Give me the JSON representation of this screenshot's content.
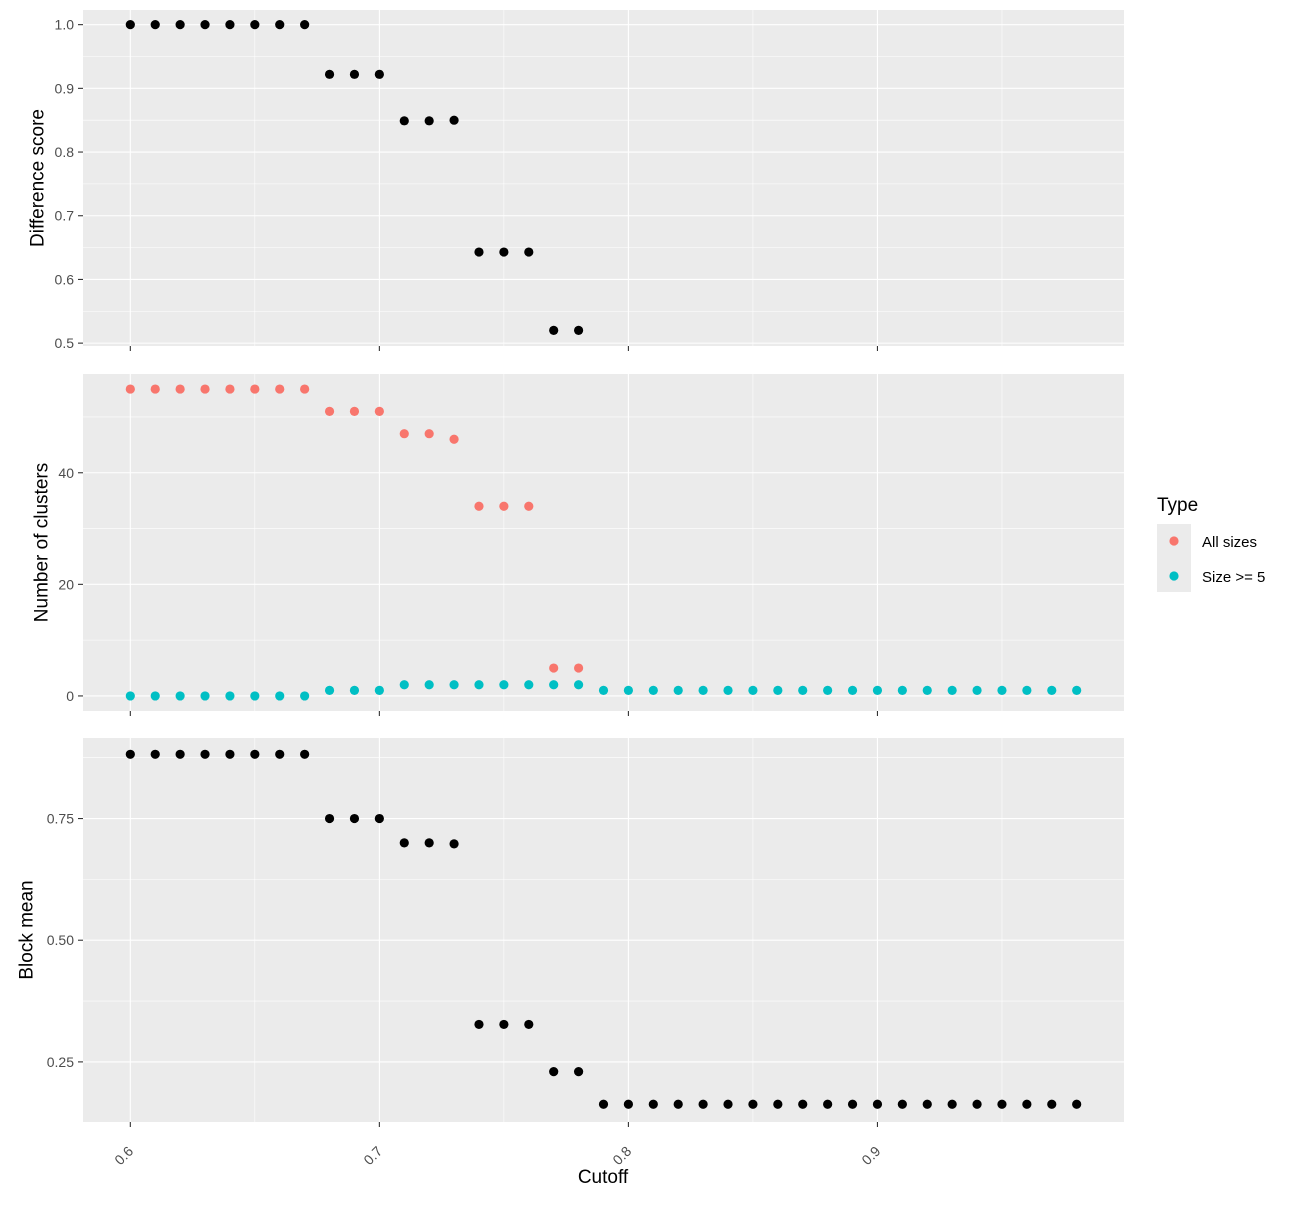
{
  "chart_data": {
    "type": "scatter",
    "xlabel": "Cutoff",
    "xlim": [
      0.581,
      0.999
    ],
    "xticks": [
      0.6,
      0.7,
      0.8,
      0.9
    ],
    "xtick_labels": [
      "0.6",
      "0.7",
      "0.8",
      "0.9"
    ],
    "legend": {
      "title": "Type",
      "position": "right",
      "entries": [
        {
          "label": "All sizes",
          "color": "#F8766D"
        },
        {
          "label": "Size >= 5",
          "color": "#00BFC4"
        }
      ]
    },
    "colors": {
      "panel_background": "#EBEBEB",
      "grid": "#FFFFFF",
      "default_point": "#000000",
      "all_sizes": "#F8766D",
      "size_ge_5": "#00BFC4"
    },
    "panels": [
      {
        "ylabel": "Difference score",
        "ylim": [
          0.4955,
          1.023
        ],
        "yticks": [
          0.5,
          0.6,
          0.7,
          0.8,
          0.9,
          1.0
        ],
        "ytick_labels": [
          "0.5",
          "0.6",
          "0.7",
          "0.8",
          "0.9",
          "1.0"
        ],
        "series": [
          {
            "name": "Difference score",
            "color": "#000000",
            "x": [
              0.6,
              0.61,
              0.62,
              0.63,
              0.64,
              0.65,
              0.66,
              0.67,
              0.68,
              0.69,
              0.7,
              0.71,
              0.72,
              0.73,
              0.74,
              0.75,
              0.76,
              0.77,
              0.78
            ],
            "y": [
              1.0,
              1.0,
              1.0,
              1.0,
              1.0,
              1.0,
              1.0,
              1.0,
              0.922,
              0.922,
              0.922,
              0.849,
              0.849,
              0.85,
              0.643,
              0.643,
              0.643,
              0.52,
              0.52
            ]
          }
        ]
      },
      {
        "ylabel": "Number of clusters",
        "ylim": [
          -2.7,
          57.7
        ],
        "yticks": [
          0,
          20,
          40
        ],
        "ytick_labels": [
          "0",
          "20",
          "40"
        ],
        "series": [
          {
            "name": "All sizes",
            "color": "#F8766D",
            "x": [
              0.6,
              0.61,
              0.62,
              0.63,
              0.64,
              0.65,
              0.66,
              0.67,
              0.68,
              0.69,
              0.7,
              0.71,
              0.72,
              0.73,
              0.74,
              0.75,
              0.76,
              0.77,
              0.78
            ],
            "y": [
              55,
              55,
              55,
              55,
              55,
              55,
              55,
              55,
              51,
              51,
              51,
              47,
              47,
              46,
              34,
              34,
              34,
              5,
              5
            ]
          },
          {
            "name": "Size >= 5",
            "color": "#00BFC4",
            "x": [
              0.6,
              0.61,
              0.62,
              0.63,
              0.64,
              0.65,
              0.66,
              0.67,
              0.68,
              0.69,
              0.7,
              0.71,
              0.72,
              0.73,
              0.74,
              0.75,
              0.76,
              0.77,
              0.78,
              0.79,
              0.8,
              0.81,
              0.82,
              0.83,
              0.84,
              0.85,
              0.86,
              0.87,
              0.88,
              0.89,
              0.9,
              0.91,
              0.92,
              0.93,
              0.94,
              0.95,
              0.96,
              0.97,
              0.98
            ],
            "y": [
              0,
              0,
              0,
              0,
              0,
              0,
              0,
              0,
              1,
              1,
              1,
              2,
              2,
              2,
              2,
              2,
              2,
              2,
              2,
              1,
              1,
              1,
              1,
              1,
              1,
              1,
              1,
              1,
              1,
              1,
              1,
              1,
              1,
              1,
              1,
              1,
              1,
              1,
              1
            ]
          }
        ]
      },
      {
        "ylabel": "Block mean",
        "ylim": [
          0.1265,
          0.9155
        ],
        "yticks": [
          0.25,
          0.5,
          0.75
        ],
        "ytick_labels": [
          "0.25",
          "0.50",
          "0.75"
        ],
        "series": [
          {
            "name": "Block mean",
            "color": "#000000",
            "x": [
              0.6,
              0.61,
              0.62,
              0.63,
              0.64,
              0.65,
              0.66,
              0.67,
              0.68,
              0.69,
              0.7,
              0.71,
              0.72,
              0.73,
              0.74,
              0.75,
              0.76,
              0.77,
              0.78,
              0.79,
              0.8,
              0.81,
              0.82,
              0.83,
              0.84,
              0.85,
              0.86,
              0.87,
              0.88,
              0.89,
              0.9,
              0.91,
              0.92,
              0.93,
              0.94,
              0.95,
              0.96,
              0.97,
              0.98
            ],
            "y": [
              0.882,
              0.882,
              0.882,
              0.882,
              0.882,
              0.882,
              0.882,
              0.882,
              0.75,
              0.75,
              0.75,
              0.7,
              0.7,
              0.698,
              0.327,
              0.327,
              0.327,
              0.23,
              0.23,
              0.163,
              0.163,
              0.163,
              0.163,
              0.163,
              0.163,
              0.163,
              0.163,
              0.163,
              0.163,
              0.163,
              0.163,
              0.163,
              0.163,
              0.163,
              0.163,
              0.163,
              0.163,
              0.163,
              0.163
            ]
          }
        ]
      }
    ]
  }
}
